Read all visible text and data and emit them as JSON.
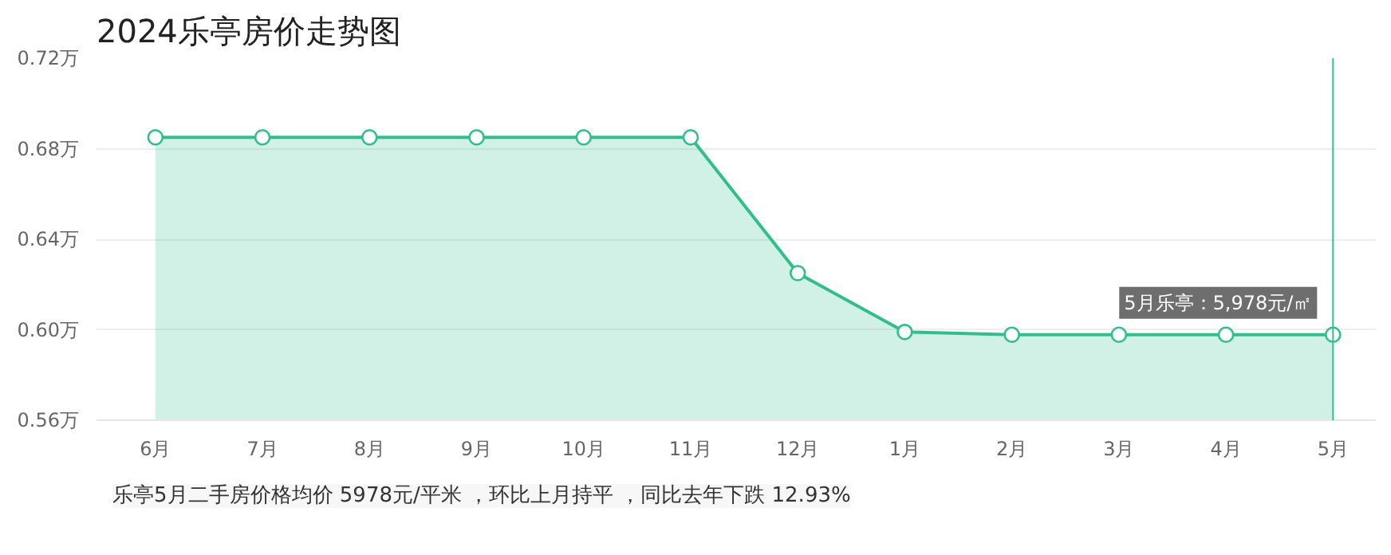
{
  "chart_data": {
    "type": "area",
    "title": "2024乐亭房价走势图",
    "categories": [
      "6月",
      "7月",
      "8月",
      "9月",
      "10月",
      "11月",
      "12月",
      "1月",
      "2月",
      "3月",
      "4月",
      "5月"
    ],
    "series": [
      {
        "color": "#2ec08b",
        "values": [
          0.685,
          0.685,
          0.685,
          0.685,
          0.685,
          0.685,
          0.625,
          0.599,
          0.5978,
          0.5978,
          0.5978,
          0.5978
        ]
      }
    ],
    "ylim": [
      0.56,
      0.72
    ],
    "yticks": [
      {
        "value": 0.56,
        "label": "0.56万"
      },
      {
        "value": 0.6,
        "label": "0.60万"
      },
      {
        "value": 0.64,
        "label": "0.64万"
      },
      {
        "value": 0.68,
        "label": "0.68万"
      },
      {
        "value": 0.72,
        "label": "0.72万"
      }
    ],
    "grid": "y",
    "marker": "circle",
    "line_style": "solid",
    "ref_lines": [
      {
        "axis": "x",
        "value": "5月",
        "color": "#2ec08b"
      }
    ],
    "annotations": [
      {
        "text": "5月乐亭：5,978元/㎡",
        "x": "5月",
        "y": 0.5978
      },
      "乐亭5月二手房价格均价 5978元/平米 ，环比上月持平 ，同比去年下跌 12.93%"
    ]
  }
}
